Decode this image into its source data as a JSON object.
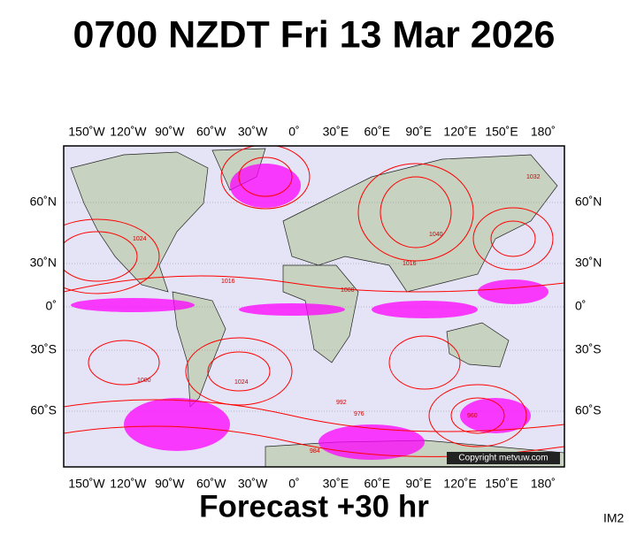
{
  "header": {
    "title": "0700 NZDT Fri 13 Mar 2026"
  },
  "map": {
    "longitude_labels": [
      "150˚W",
      "120˚W",
      "90˚W",
      "60˚W",
      "30˚W",
      "0˚",
      "30˚E",
      "60˚E",
      "90˚E",
      "120˚E",
      "150˚E",
      "180˚"
    ],
    "latitude_labels": [
      "60˚N",
      "30˚N",
      "0˚",
      "30˚S",
      "60˚S"
    ],
    "isobar_labels": [
      "1024",
      "1016",
      "1008",
      "1000",
      "992",
      "984",
      "976",
      "960",
      "1040",
      "1032",
      "1016",
      "1024"
    ],
    "copyright": "Copyright metvuw.com"
  },
  "footer": {
    "forecast": "Forecast +30 hr",
    "image_id": "IM2"
  }
}
